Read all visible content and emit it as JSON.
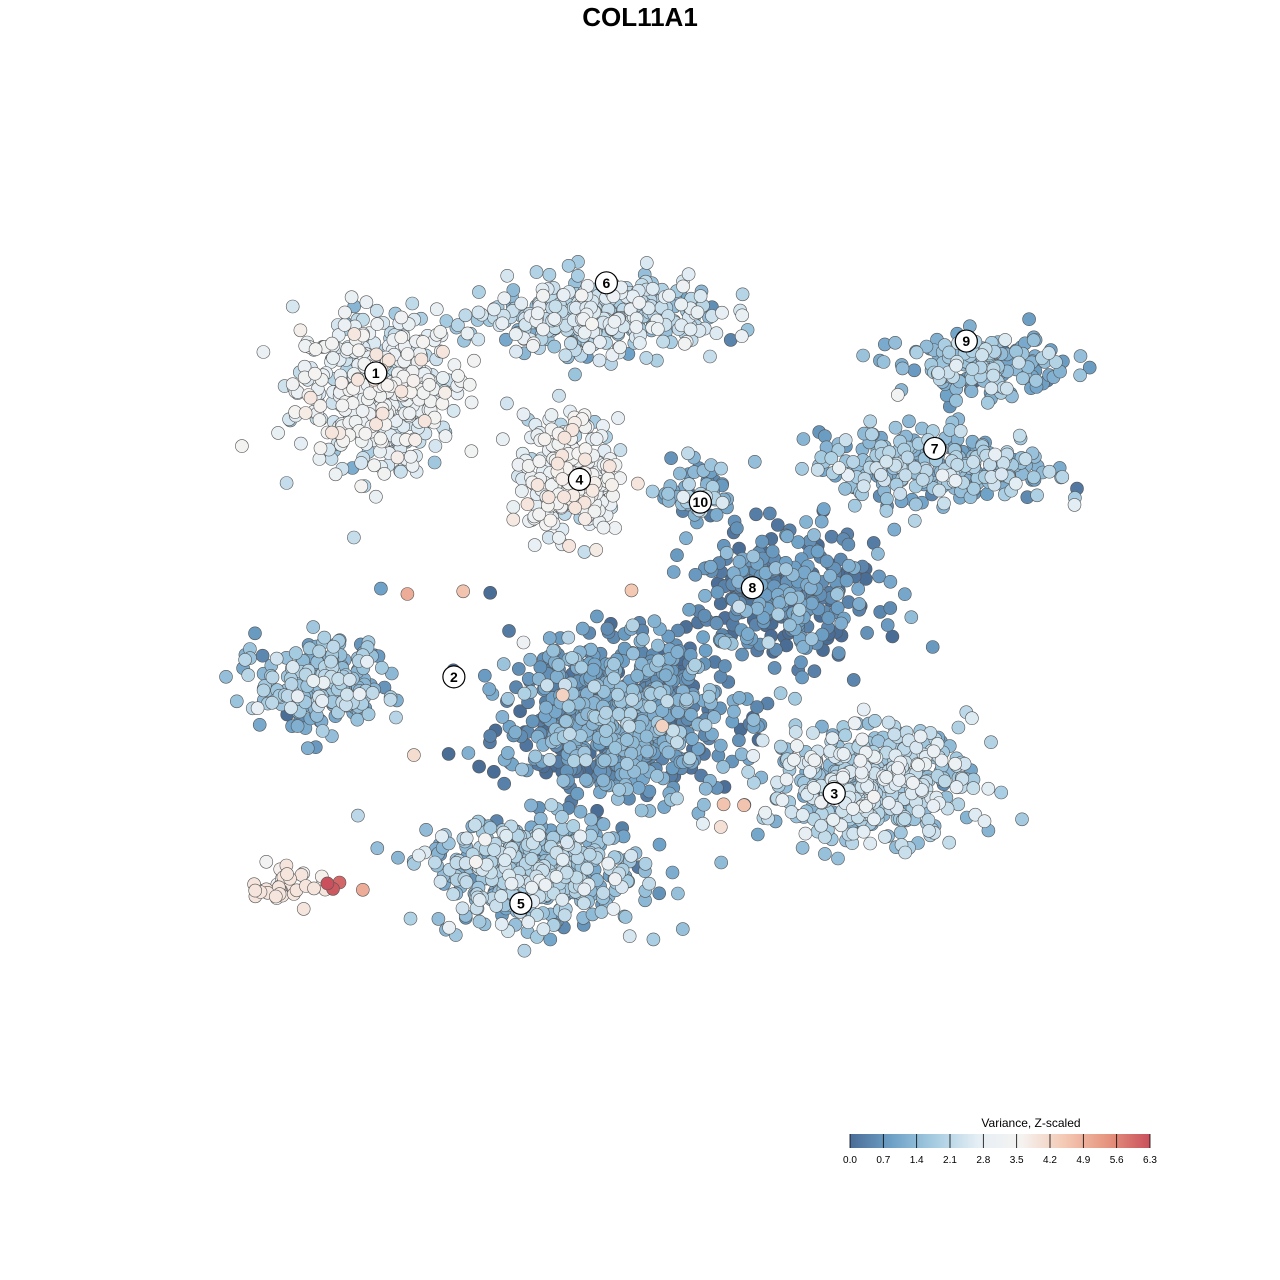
{
  "chart_data": {
    "type": "scatter",
    "title": "COL11A1",
    "xlabel": "",
    "ylabel": "",
    "grid": false,
    "legend": {
      "title": "Variance, Z-scaled",
      "placement": "bottom-right",
      "range": [
        0.0,
        6.3
      ],
      "ticks": [
        "0.0",
        "0.7",
        "1.4",
        "2.1",
        "2.8",
        "3.5",
        "4.2",
        "4.9",
        "5.6",
        "6.3"
      ],
      "colors": [
        "#4a6d96",
        "#6fa2c8",
        "#a8cde2",
        "#e6eff5",
        "#f5f3f1",
        "#f4c9b4",
        "#e6957f",
        "#c9505c"
      ]
    },
    "xlim": [
      0,
      1000
    ],
    "ylim": [
      0,
      1000
    ],
    "clusters": [
      {
        "label": "1",
        "x": 190,
        "y": 770,
        "spread": [
          95,
          90
        ],
        "n": 520,
        "mean": 2.7
      },
      {
        "label": "6",
        "x": 430,
        "y": 850,
        "spread": [
          130,
          45
        ],
        "n": 420,
        "mean": 2.0
      },
      {
        "label": "4",
        "x": 400,
        "y": 675,
        "spread": [
          55,
          70
        ],
        "n": 300,
        "mean": 2.9
      },
      {
        "label": "10",
        "x": 535,
        "y": 655,
        "spread": [
          45,
          40
        ],
        "n": 70,
        "mean": 1.2
      },
      {
        "label": "9",
        "x": 840,
        "y": 795,
        "spread": [
          95,
          35
        ],
        "n": 170,
        "mean": 1.4
      },
      {
        "label": "7",
        "x": 790,
        "y": 685,
        "spread": [
          140,
          45
        ],
        "n": 300,
        "mean": 1.5
      },
      {
        "label": "8",
        "x": 630,
        "y": 545,
        "spread": [
          110,
          75
        ],
        "n": 340,
        "mean": 0.5
      },
      {
        "label": "2",
        "x": 130,
        "y": 445,
        "spread": [
          75,
          55
        ],
        "n": 260,
        "mean": 1.4
      },
      {
        "label": "3",
        "x": 720,
        "y": 340,
        "spread": [
          120,
          70
        ],
        "n": 480,
        "mean": 1.9
      },
      {
        "label": "5",
        "x": 360,
        "y": 240,
        "spread": [
          125,
          65
        ],
        "n": 480,
        "mean": 1.6
      },
      {
        "label": "",
        "x": 450,
        "y": 410,
        "spread": [
          130,
          95
        ],
        "n": 820,
        "mean": 0.8
      },
      {
        "label": "",
        "x": 95,
        "y": 225,
        "spread": [
          45,
          25
        ],
        "n": 35,
        "mean": 4.2
      }
    ],
    "label_positions": [
      {
        "label": "1",
        "x": 189,
        "y": 788
      },
      {
        "label": "6",
        "x": 437,
        "y": 887
      },
      {
        "label": "4",
        "x": 408,
        "y": 671
      },
      {
        "label": "10",
        "x": 538,
        "y": 646
      },
      {
        "label": "9",
        "x": 824,
        "y": 823
      },
      {
        "label": "7",
        "x": 790,
        "y": 705
      },
      {
        "label": "8",
        "x": 594,
        "y": 552
      },
      {
        "label": "2",
        "x": 273,
        "y": 454
      },
      {
        "label": "3",
        "x": 682,
        "y": 326
      },
      {
        "label": "5",
        "x": 345,
        "y": 205
      }
    ],
    "highlight_points": [
      {
        "x": 223,
        "y": 545,
        "value": 5.0
      },
      {
        "x": 283,
        "y": 548,
        "value": 4.6
      },
      {
        "x": 390,
        "y": 434,
        "value": 4.3
      },
      {
        "x": 497,
        "y": 400,
        "value": 4.3
      },
      {
        "x": 464,
        "y": 549,
        "value": 4.5
      },
      {
        "x": 585,
        "y": 313,
        "value": 4.6
      },
      {
        "x": 563,
        "y": 314,
        "value": 4.6
      },
      {
        "x": 560,
        "y": 289,
        "value": 4.0
      },
      {
        "x": 137,
        "y": 227,
        "value": 6.3
      },
      {
        "x": 143,
        "y": 221,
        "value": 6.2
      },
      {
        "x": 150,
        "y": 228,
        "value": 6.0
      },
      {
        "x": 175,
        "y": 220,
        "value": 5.0
      },
      {
        "x": 230,
        "y": 368,
        "value": 4.1
      }
    ]
  }
}
